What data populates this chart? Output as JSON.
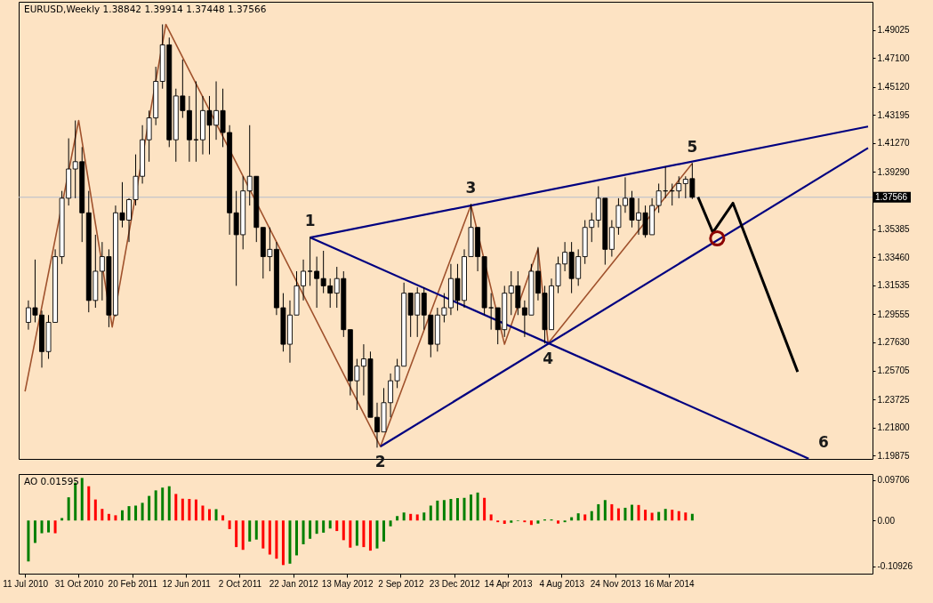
{
  "chart_data": [
    {
      "type": "candlestick",
      "title": "EURUSD,Weekly  1.38842 1.39914 1.37448 1.37566",
      "color": "#000000",
      "x": [
        "2010-07-18",
        "2010-08-01",
        "2010-08-15",
        "2010-08-29",
        "2010-09-12",
        "2010-09-26",
        "2010-10-10",
        "2010-10-24",
        "2010-11-07",
        "2010-11-21",
        "2010-12-05",
        "2010-12-19",
        "2011-01-02",
        "2011-01-16",
        "2011-01-30",
        "2011-02-13",
        "2011-02-27",
        "2011-03-13",
        "2011-03-27",
        "2011-04-10",
        "2011-04-24",
        "2011-05-08",
        "2011-05-22",
        "2011-06-05",
        "2011-06-19",
        "2011-07-03",
        "2011-07-17",
        "2011-07-31",
        "2011-08-14",
        "2011-08-28",
        "2011-09-11",
        "2011-09-25",
        "2011-10-09",
        "2011-10-23",
        "2011-11-06",
        "2011-11-20",
        "2011-12-04",
        "2011-12-18",
        "2012-01-01",
        "2012-01-15",
        "2012-01-29",
        "2012-02-12",
        "2012-02-26",
        "2012-03-11",
        "2012-03-25",
        "2012-04-08",
        "2012-04-22",
        "2012-05-06",
        "2012-05-20",
        "2012-06-03",
        "2012-06-17",
        "2012-07-01",
        "2012-07-15",
        "2012-07-29",
        "2012-08-12",
        "2012-08-26",
        "2012-09-09",
        "2012-09-23",
        "2012-10-07",
        "2012-10-21",
        "2012-11-04",
        "2012-11-18",
        "2012-12-02",
        "2012-12-16",
        "2012-12-30",
        "2013-01-13",
        "2013-01-27",
        "2013-02-10",
        "2013-02-24",
        "2013-03-10",
        "2013-03-24",
        "2013-04-07",
        "2013-04-21",
        "2013-05-05",
        "2013-05-19",
        "2013-06-02",
        "2013-06-16",
        "2013-06-30",
        "2013-07-14",
        "2013-07-28",
        "2013-08-11",
        "2013-08-25",
        "2013-09-08",
        "2013-09-22",
        "2013-10-06",
        "2013-10-20",
        "2013-11-03",
        "2013-11-17",
        "2013-12-01",
        "2013-12-15",
        "2013-12-29",
        "2014-01-12",
        "2014-01-26",
        "2014-02-09",
        "2014-02-23",
        "2014-03-09",
        "2014-03-23",
        "2014-04-06",
        "2014-04-20",
        "2014-05-04"
      ],
      "ohlc": [
        [
          1.29,
          1.305,
          1.285,
          1.3
        ],
        [
          1.3,
          1.333,
          1.29,
          1.295
        ],
        [
          1.295,
          1.298,
          1.259,
          1.27
        ],
        [
          1.27,
          1.295,
          1.265,
          1.29
        ],
        [
          1.29,
          1.34,
          1.29,
          1.335
        ],
        [
          1.335,
          1.38,
          1.33,
          1.375
        ],
        [
          1.375,
          1.416,
          1.37,
          1.395
        ],
        [
          1.395,
          1.4282,
          1.375,
          1.4
        ],
        [
          1.4,
          1.41,
          1.345,
          1.365
        ],
        [
          1.365,
          1.38,
          1.2969,
          1.305
        ],
        [
          1.305,
          1.35,
          1.3,
          1.325
        ],
        [
          1.325,
          1.345,
          1.305,
          1.335
        ],
        [
          1.335,
          1.34,
          1.2867,
          1.295
        ],
        [
          1.295,
          1.37,
          1.294,
          1.365
        ],
        [
          1.365,
          1.386,
          1.355,
          1.36
        ],
        [
          1.36,
          1.375,
          1.345,
          1.374
        ],
        [
          1.374,
          1.405,
          1.37,
          1.39
        ],
        [
          1.39,
          1.425,
          1.385,
          1.415
        ],
        [
          1.415,
          1.435,
          1.4,
          1.43
        ],
        [
          1.43,
          1.465,
          1.425,
          1.455
        ],
        [
          1.455,
          1.494,
          1.45,
          1.48
        ],
        [
          1.48,
          1.485,
          1.41,
          1.415
        ],
        [
          1.415,
          1.45,
          1.4,
          1.445
        ],
        [
          1.445,
          1.47,
          1.43,
          1.435
        ],
        [
          1.435,
          1.445,
          1.4,
          1.415
        ],
        [
          1.415,
          1.455,
          1.4,
          1.415
        ],
        [
          1.415,
          1.445,
          1.405,
          1.435
        ],
        [
          1.435,
          1.445,
          1.405,
          1.425
        ],
        [
          1.425,
          1.455,
          1.415,
          1.435
        ],
        [
          1.435,
          1.45,
          1.41,
          1.42
        ],
        [
          1.42,
          1.425,
          1.35,
          1.365
        ],
        [
          1.365,
          1.38,
          1.315,
          1.35
        ],
        [
          1.35,
          1.39,
          1.34,
          1.38
        ],
        [
          1.38,
          1.425,
          1.37,
          1.39
        ],
        [
          1.39,
          1.39,
          1.345,
          1.355
        ],
        [
          1.355,
          1.355,
          1.32,
          1.335
        ],
        [
          1.335,
          1.355,
          1.325,
          1.34
        ],
        [
          1.34,
          1.345,
          1.295,
          1.3
        ],
        [
          1.3,
          1.31,
          1.27,
          1.275
        ],
        [
          1.275,
          1.305,
          1.2624,
          1.295
        ],
        [
          1.295,
          1.325,
          1.295,
          1.315
        ],
        [
          1.315,
          1.333,
          1.305,
          1.325
        ],
        [
          1.325,
          1.3486,
          1.315,
          1.325
        ],
        [
          1.325,
          1.335,
          1.3,
          1.32
        ],
        [
          1.32,
          1.339,
          1.31,
          1.315
        ],
        [
          1.315,
          1.32,
          1.3,
          1.31
        ],
        [
          1.31,
          1.328,
          1.3,
          1.32
        ],
        [
          1.32,
          1.325,
          1.28,
          1.285
        ],
        [
          1.285,
          1.285,
          1.24,
          1.25
        ],
        [
          1.25,
          1.265,
          1.23,
          1.26
        ],
        [
          1.26,
          1.275,
          1.24,
          1.265
        ],
        [
          1.265,
          1.27,
          1.225,
          1.225
        ],
        [
          1.225,
          1.235,
          1.2042,
          1.215
        ],
        [
          1.215,
          1.245,
          1.215,
          1.235
        ],
        [
          1.235,
          1.255,
          1.225,
          1.25
        ],
        [
          1.25,
          1.265,
          1.245,
          1.26
        ],
        [
          1.26,
          1.3172,
          1.26,
          1.31
        ],
        [
          1.31,
          1.31,
          1.28,
          1.295
        ],
        [
          1.295,
          1.314,
          1.28,
          1.31
        ],
        [
          1.31,
          1.314,
          1.285,
          1.295
        ],
        [
          1.295,
          1.295,
          1.2661,
          1.275
        ],
        [
          1.275,
          1.3,
          1.27,
          1.295
        ],
        [
          1.295,
          1.31,
          1.29,
          1.3
        ],
        [
          1.3,
          1.33,
          1.295,
          1.32
        ],
        [
          1.32,
          1.33,
          1.298,
          1.305
        ],
        [
          1.305,
          1.34,
          1.3,
          1.335
        ],
        [
          1.335,
          1.3711,
          1.335,
          1.355
        ],
        [
          1.355,
          1.355,
          1.325,
          1.335
        ],
        [
          1.335,
          1.335,
          1.295,
          1.3
        ],
        [
          1.3,
          1.31,
          1.285,
          1.3
        ],
        [
          1.3,
          1.3,
          1.275,
          1.285
        ],
        [
          1.285,
          1.315,
          1.28,
          1.31
        ],
        [
          1.31,
          1.325,
          1.295,
          1.315
        ],
        [
          1.315,
          1.325,
          1.295,
          1.3
        ],
        [
          1.3,
          1.305,
          1.28,
          1.295
        ],
        [
          1.295,
          1.33,
          1.295,
          1.325
        ],
        [
          1.325,
          1.3416,
          1.305,
          1.31
        ],
        [
          1.31,
          1.315,
          1.2755,
          1.285
        ],
        [
          1.285,
          1.32,
          1.285,
          1.315
        ],
        [
          1.315,
          1.335,
          1.31,
          1.33
        ],
        [
          1.33,
          1.345,
          1.325,
          1.338
        ],
        [
          1.338,
          1.345,
          1.31,
          1.32
        ],
        [
          1.32,
          1.34,
          1.315,
          1.335
        ],
        [
          1.335,
          1.36,
          1.33,
          1.355
        ],
        [
          1.355,
          1.365,
          1.345,
          1.36
        ],
        [
          1.36,
          1.3832,
          1.355,
          1.375
        ],
        [
          1.375,
          1.375,
          1.3295,
          1.34
        ],
        [
          1.34,
          1.36,
          1.335,
          1.355
        ],
        [
          1.355,
          1.375,
          1.35,
          1.37
        ],
        [
          1.37,
          1.3893,
          1.365,
          1.375
        ],
        [
          1.375,
          1.38,
          1.355,
          1.36
        ],
        [
          1.36,
          1.375,
          1.35,
          1.365
        ],
        [
          1.365,
          1.37,
          1.348,
          1.35
        ],
        [
          1.35,
          1.375,
          1.35,
          1.37
        ],
        [
          1.37,
          1.385,
          1.365,
          1.38
        ],
        [
          1.38,
          1.3967,
          1.375,
          1.38
        ],
        [
          1.38,
          1.385,
          1.37,
          1.38
        ],
        [
          1.38,
          1.39,
          1.375,
          1.385
        ],
        [
          1.385,
          1.39,
          1.375,
          1.388
        ],
        [
          1.38842,
          1.39914,
          1.37448,
          1.37566
        ]
      ],
      "series": [
        {
          "type": "line",
          "color": "#a0522d",
          "x": [
            "2010-07-11",
            "2010-10-31",
            "2011-01-09",
            "2011-05-01",
            "2012-07-22",
            "2013-01-27",
            "2013-04-07",
            "2013-06-16",
            "2013-07-07",
            "2014-05-04"
          ],
          "values": [
            1.2427,
            1.4282,
            1.2868,
            1.494,
            1.205,
            1.3704,
            1.275,
            1.3403,
            1.2757,
            1.3988
          ]
        },
        {
          "type": "line",
          "color": "#000080",
          "x": [
            "2012-02-26",
            "2015-05-06"
          ],
          "values": [
            1.3481,
            1.4241
          ]
        },
        {
          "type": "line",
          "color": "#000080",
          "x": [
            "2012-07-22",
            "2015-05-06"
          ],
          "values": [
            1.205,
            1.4094
          ]
        },
        {
          "type": "line",
          "color": "#000080",
          "x": [
            "2012-02-26",
            "2015-01-02"
          ],
          "values": [
            1.3481,
            1.1967
          ]
        },
        {
          "type": "line",
          "color": "#000000",
          "x": [
            "2014-05-16",
            "2014-06-16",
            "2014-07-28",
            "2014-12-10"
          ],
          "values": [
            1.3758,
            1.3516,
            1.3716,
            1.2561
          ]
        },
        {
          "type": "scatter",
          "color": "#8b0000",
          "marker": "circle",
          "x": [
            "2014-06-25"
          ],
          "values": [
            1.3475
          ]
        }
      ],
      "annotations": [
        {
          "text": "1",
          "x": "2012-02-26",
          "y": 1.3481
        },
        {
          "text": "2",
          "x": "2012-07-22",
          "y": 1.205
        },
        {
          "text": "3",
          "x": "2013-01-27",
          "y": 1.3704
        },
        {
          "text": "4",
          "x": "2013-07-07",
          "y": 1.2757
        },
        {
          "text": "5",
          "x": "2014-05-04",
          "y": 1.3988
        },
        "6"
      ],
      "ref_lines": [
        {
          "axis": "y",
          "value": 1.37566,
          "label": "1.37566",
          "color": "#b4bccc"
        }
      ],
      "xlim": [
        "2010-07-07",
        "2015-05-06"
      ],
      "ylim": [
        1.1965,
        1.5095
      ],
      "yticks": [
        1.49025,
        {
          "value": 1.471,
          "label": "1.47100"
        },
        {
          "value": 1.4512,
          "label": "1.45120"
        },
        1.43195,
        {
          "value": 1.4127,
          "label": "1.41270"
        },
        {
          "value": 1.3929,
          "label": "1.39290"
        },
        1.35385,
        {
          "value": 1.3346,
          "label": "1.33460"
        },
        1.31535,
        1.29555,
        {
          "value": 1.2763,
          "label": "1.27630"
        },
        1.25705,
        1.23725,
        {
          "value": 1.218,
          "label": "1.21800"
        },
        1.19875
      ],
      "tick_labels": "y"
    },
    {
      "type": "bar",
      "title": "AO 0.01595",
      "x": [
        "2010-07-18",
        "2010-08-01",
        "2010-08-15",
        "2010-08-29",
        "2010-09-12",
        "2010-09-26",
        "2010-10-10",
        "2010-10-24",
        "2010-11-07",
        "2010-11-21",
        "2010-12-05",
        "2010-12-19",
        "2011-01-02",
        "2011-01-16",
        "2011-01-30",
        "2011-02-13",
        "2011-02-27",
        "2011-03-13",
        "2011-03-27",
        "2011-04-10",
        "2011-04-24",
        "2011-05-08",
        "2011-05-22",
        "2011-06-05",
        "2011-06-19",
        "2011-07-03",
        "2011-07-17",
        "2011-07-31",
        "2011-08-14",
        "2011-08-28",
        "2011-09-11",
        "2011-09-25",
        "2011-10-09",
        "2011-10-23",
        "2011-11-06",
        "2011-11-20",
        "2011-12-04",
        "2011-12-18",
        "2012-01-01",
        "2012-01-15",
        "2012-01-29",
        "2012-02-12",
        "2012-02-26",
        "2012-03-11",
        "2012-03-25",
        "2012-04-08",
        "2012-04-22",
        "2012-05-06",
        "2012-05-20",
        "2012-06-03",
        "2012-06-17",
        "2012-07-01",
        "2012-07-15",
        "2012-07-29",
        "2012-08-12",
        "2012-08-26",
        "2012-09-09",
        "2012-09-23",
        "2012-10-07",
        "2012-10-21",
        "2012-11-04",
        "2012-11-18",
        "2012-12-02",
        "2012-12-16",
        "2012-12-30",
        "2013-01-13",
        "2013-01-27",
        "2013-02-10",
        "2013-02-24",
        "2013-03-10",
        "2013-03-24",
        "2013-04-07",
        "2013-04-21",
        "2013-05-05",
        "2013-05-19",
        "2013-06-02",
        "2013-06-16",
        "2013-06-30",
        "2013-07-14",
        "2013-07-28",
        "2013-08-11",
        "2013-08-25",
        "2013-09-08",
        "2013-09-22",
        "2013-10-06",
        "2013-10-20",
        "2013-11-03",
        "2013-11-17",
        "2013-12-01",
        "2013-12-15",
        "2013-12-29",
        "2014-01-12",
        "2014-01-26",
        "2014-02-09",
        "2014-02-23",
        "2014-03-09",
        "2014-03-23",
        "2014-04-06",
        "2014-04-20",
        "2014-05-04"
      ],
      "values": [
        -0.0977,
        -0.0535,
        -0.0304,
        -0.0284,
        -0.0304,
        0.0059,
        0.0554,
        0.0904,
        0.1016,
        0.0818,
        0.0502,
        0.0277,
        0.0158,
        0.0125,
        0.0244,
        0.0343,
        0.0356,
        0.0422,
        0.0587,
        0.0719,
        0.0785,
        0.0818,
        0.0634,
        0.0521,
        0.0515,
        0.0502,
        0.0356,
        0.0271,
        0.0271,
        0.0125,
        -0.0205,
        -0.0634,
        -0.07,
        -0.0502,
        -0.0455,
        -0.0667,
        -0.0812,
        -0.0911,
        -0.1063,
        -0.103,
        -0.0832,
        -0.0568,
        -0.0436,
        -0.0317,
        -0.029,
        -0.0191,
        -0.0251,
        -0.0469,
        -0.0647,
        -0.0601,
        -0.0634,
        -0.0719,
        -0.0667,
        -0.0502,
        -0.0139,
        0.0106,
        0.0191,
        0.0158,
        0.0145,
        0.0191,
        0.0356,
        0.0475,
        0.0488,
        0.0515,
        0.0535,
        0.0541,
        0.062,
        0.0667,
        0.0541,
        0.0145,
        -0.004,
        -0.0079,
        -0.0053,
        -0.0013,
        -0.004,
        -0.0106,
        -0.0073,
        0.0026,
        0.0026,
        -0.0073,
        -0.004,
        0.0079,
        0.0172,
        0.0145,
        0.0224,
        0.0389,
        0.0488,
        0.0389,
        0.029,
        0.0304,
        0.0376,
        0.037,
        0.0257,
        0.0185,
        0.0205,
        0.0277,
        0.0257,
        0.0224,
        0.0191,
        0.01595
      ],
      "colors": [
        "#008000",
        "#008000",
        "#008000",
        "#008000",
        "#ff0000",
        "#008000",
        "#008000",
        "#008000",
        "#008000",
        "#ff0000",
        "#ff0000",
        "#ff0000",
        "#ff0000",
        "#ff0000",
        "#008000",
        "#008000",
        "#008000",
        "#008000",
        "#008000",
        "#008000",
        "#008000",
        "#008000",
        "#ff0000",
        "#ff0000",
        "#ff0000",
        "#ff0000",
        "#ff0000",
        "#ff0000",
        "#008000",
        "#ff0000",
        "#ff0000",
        "#ff0000",
        "#ff0000",
        "#008000",
        "#008000",
        "#ff0000",
        "#ff0000",
        "#ff0000",
        "#ff0000",
        "#008000",
        "#008000",
        "#008000",
        "#008000",
        "#008000",
        "#008000",
        "#008000",
        "#ff0000",
        "#ff0000",
        "#ff0000",
        "#008000",
        "#ff0000",
        "#ff0000",
        "#008000",
        "#008000",
        "#008000",
        "#008000",
        "#008000",
        "#ff0000",
        "#ff0000",
        "#008000",
        "#008000",
        "#008000",
        "#008000",
        "#008000",
        "#008000",
        "#008000",
        "#008000",
        "#008000",
        "#ff0000",
        "#ff0000",
        "#ff0000",
        "#ff0000",
        "#008000",
        "#008000",
        "#ff0000",
        "#ff0000",
        "#008000",
        "#008000",
        "#008000",
        "#ff0000",
        "#008000",
        "#008000",
        "#008000",
        "#ff0000",
        "#008000",
        "#008000",
        "#008000",
        "#ff0000",
        "#ff0000",
        "#008000",
        "#008000",
        "#ff0000",
        "#ff0000",
        "#ff0000",
        "#008000",
        "#008000",
        "#ff0000",
        "#ff0000",
        "#ff0000",
        "#008000"
      ],
      "xlim": [
        "2010-07-07",
        "2015-05-06"
      ],
      "ylim": [
        -0.1268,
        0.1109
      ],
      "yticks": [
        0.09706,
        {
          "value": 0,
          "label": "0.00"
        },
        -0.10926
      ],
      "xticks": [
        {
          "value": "2010-07-11",
          "label": "11 Jul 2010"
        },
        {
          "value": "2010-10-31",
          "label": "31 Oct 2010"
        },
        {
          "value": "2011-02-20",
          "label": "20 Feb 2011"
        },
        {
          "value": "2011-06-12",
          "label": "12 Jun 2011"
        },
        {
          "value": "2011-10-02",
          "label": "2 Oct 2011"
        },
        {
          "value": "2012-01-22",
          "label": "22 Jan 2012"
        },
        {
          "value": "2012-05-13",
          "label": "13 May 2012"
        },
        {
          "value": "2012-09-02",
          "label": "2 Sep 2012"
        },
        {
          "value": "2012-12-23",
          "label": "23 Dec 2012"
        },
        {
          "value": "2013-04-14",
          "label": "14 Apr 2013"
        },
        {
          "value": "2013-08-04",
          "label": "4 Aug 2013"
        },
        {
          "value": "2013-11-24",
          "label": "24 Nov 2013"
        },
        {
          "value": "2014-03-16",
          "label": "16 Mar 2014"
        }
      ]
    }
  ]
}
